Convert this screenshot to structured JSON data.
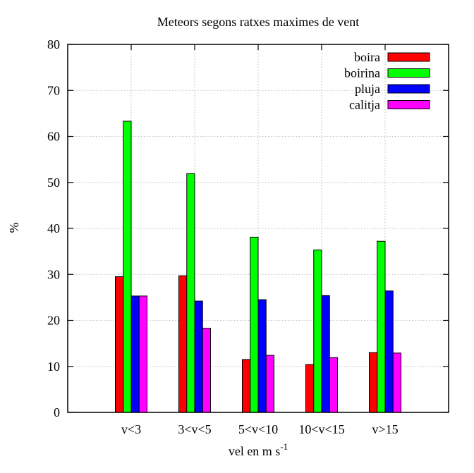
{
  "chart_data": {
    "type": "bar",
    "title": "Meteors segons ratxes maximes de vent",
    "xlabel": "vel en m s",
    "xlabel_superscript": "-1",
    "ylabel": "%",
    "ylim": [
      0,
      80
    ],
    "yticks": [
      0,
      10,
      20,
      30,
      40,
      50,
      60,
      70,
      80
    ],
    "grid": true,
    "legend_position": "top-right",
    "categories": [
      "v<3",
      "3<v<5",
      "5<v<10",
      "10<v<15",
      "v>15"
    ],
    "series": [
      {
        "name": "boira",
        "color": "#ff0000",
        "values": [
          29.5,
          29.7,
          11.5,
          10.4,
          13.0
        ]
      },
      {
        "name": "boirina",
        "color": "#00ff00",
        "values": [
          63.3,
          51.9,
          38.1,
          35.3,
          37.2
        ]
      },
      {
        "name": "pluja",
        "color": "#0000ff",
        "values": [
          25.3,
          24.2,
          24.5,
          25.4,
          26.4
        ]
      },
      {
        "name": "calitja",
        "color": "#ff00ff",
        "values": [
          25.3,
          18.3,
          12.4,
          11.9,
          12.9
        ]
      }
    ]
  }
}
